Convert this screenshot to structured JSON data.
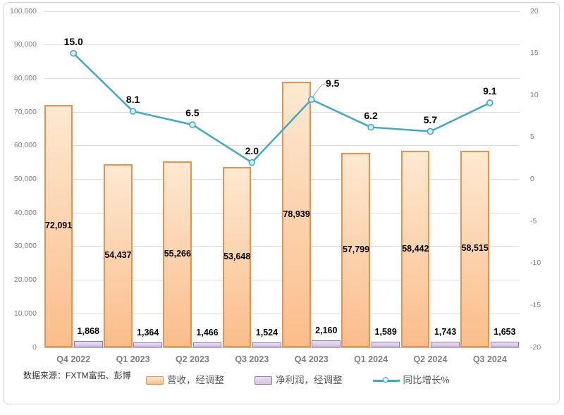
{
  "source_note": "数据来源：FXTM富拓、彭博",
  "legend": {
    "items": [
      {
        "label": "营收，经调整",
        "swatch": "bar-orange"
      },
      {
        "label": "净利润，经调整",
        "swatch": "bar-purple"
      },
      {
        "label": "同比增长%",
        "swatch": "line-marker"
      }
    ]
  },
  "chart_data": {
    "type": "combo",
    "title": "",
    "categories": [
      "Q4 2022",
      "Q1 2023",
      "Q2 2023",
      "Q3 2023",
      "Q4 2023",
      "Q1 2024",
      "Q2 2024",
      "Q3 2024"
    ],
    "series": [
      {
        "name": "营收，经调整",
        "type": "bar",
        "axis": "left",
        "values": [
          72091,
          54437,
          55266,
          53648,
          78939,
          57799,
          58442,
          58515
        ],
        "labels": [
          "72,091",
          "54,437",
          "55,266",
          "53,648",
          "78,939",
          "57,799",
          "58,442",
          "58,515"
        ]
      },
      {
        "name": "净利润，经调整",
        "type": "bar",
        "axis": "left",
        "values": [
          1868,
          1364,
          1466,
          1524,
          2160,
          1589,
          1743,
          1653
        ],
        "labels": [
          "1,868",
          "1,364",
          "1,466",
          "1,524",
          "2,160",
          "1,589",
          "1,743",
          "1,653"
        ]
      },
      {
        "name": "同比增长%",
        "type": "line",
        "axis": "right",
        "values": [
          15.0,
          8.1,
          6.5,
          2.0,
          9.5,
          6.2,
          5.7,
          9.1
        ],
        "labels": [
          "15.0",
          "8.1",
          "6.5",
          "2.0",
          "9.5",
          "6.2",
          "5.7",
          "9.1"
        ],
        "callout_index": 4
      }
    ],
    "left_axis": {
      "min": 0,
      "max": 100000,
      "step": 10000,
      "tick_labels": [
        "100,000",
        "90,000",
        "80,000",
        "70,000",
        "60,000",
        "50,000",
        "40,000",
        "30,000",
        "20,000",
        "10,000",
        "0"
      ]
    },
    "right_axis": {
      "min": -20,
      "max": 20,
      "step": 5,
      "tick_labels": [
        "20",
        "15",
        "10",
        "5",
        "0",
        "-5",
        "-10",
        "-15",
        "-20"
      ]
    },
    "grid": "horizontal",
    "legend_position": "bottom",
    "colors": {
      "revenue_fill_top": "#FDE9D2",
      "revenue_fill_bottom": "#FBBD8A",
      "revenue_border": "#E8924A",
      "profit_fill_top": "#E7DFF1",
      "profit_fill_bottom": "#D3C4E5",
      "profit_border": "#9478B4",
      "line": "#41A8C6",
      "marker_fill": "#D8EFF6",
      "leader": "#A6A6A6",
      "grid": "#DEDEDE",
      "axis_text": "#808080",
      "label_text": "#000000"
    }
  }
}
